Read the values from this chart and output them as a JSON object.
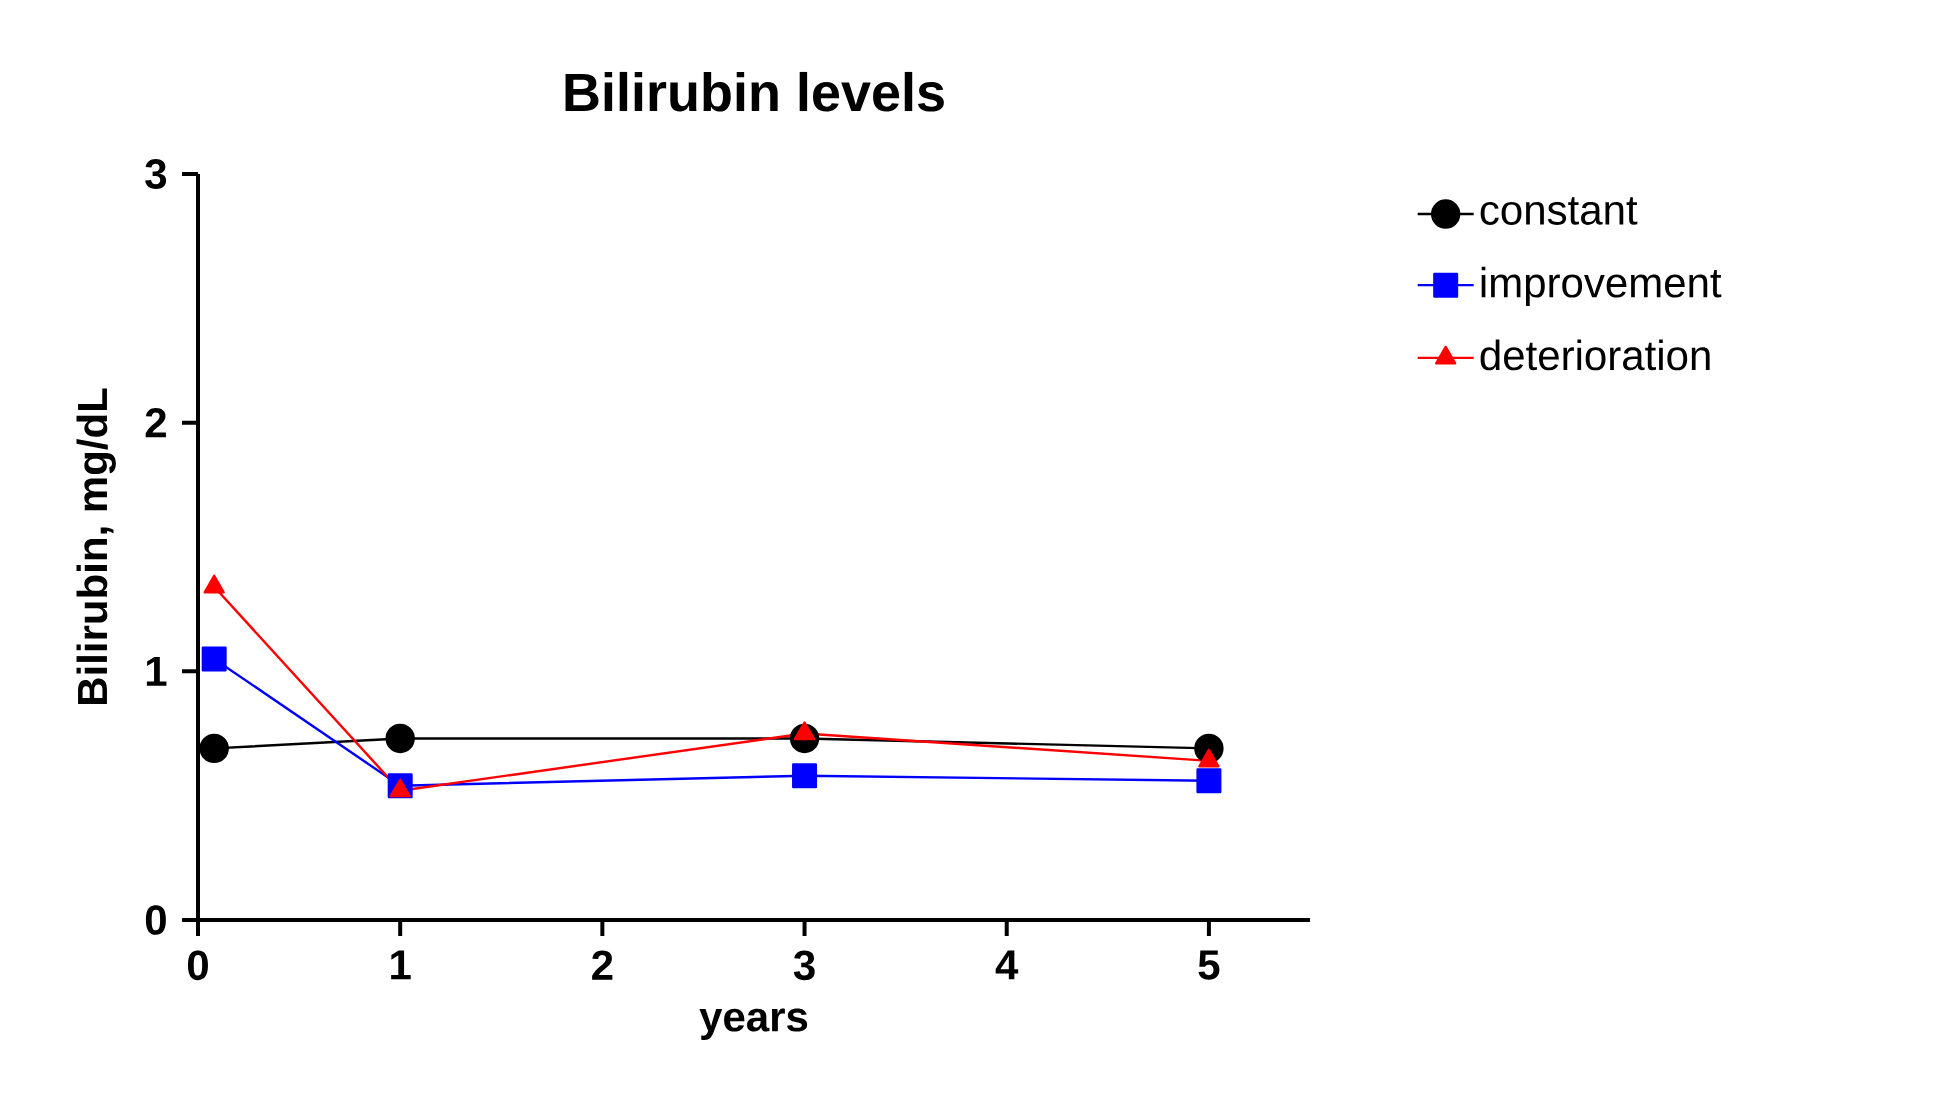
{
  "chart_data": {
    "type": "line",
    "title": "Bilirubin levels",
    "xlabel": "years",
    "ylabel": "Bilirubin, mg/dL",
    "x": [
      0.08,
      1,
      3,
      5
    ],
    "xlim": [
      0,
      5.5
    ],
    "xticks": [
      0,
      1,
      2,
      3,
      4,
      5
    ],
    "ylim": [
      0,
      3
    ],
    "yticks": [
      0,
      1,
      2,
      3
    ],
    "grid": false,
    "legend": "right",
    "series": [
      {
        "name": "constant",
        "color": "#000000",
        "marker": "circle",
        "values": [
          0.69,
          0.73,
          0.73,
          0.69
        ]
      },
      {
        "name": "improvement",
        "color": "#0000ff",
        "marker": "square",
        "values": [
          1.05,
          0.54,
          0.58,
          0.56
        ]
      },
      {
        "name": "deterioration",
        "color": "#ff0000",
        "marker": "triangle",
        "values": [
          1.34,
          0.52,
          0.75,
          0.64
        ]
      }
    ]
  }
}
